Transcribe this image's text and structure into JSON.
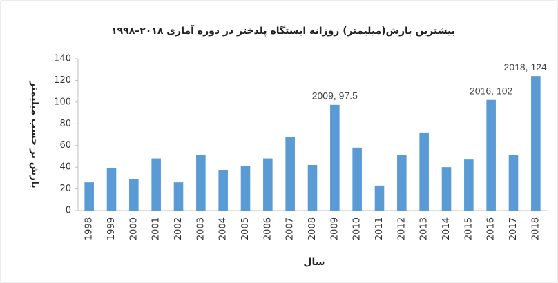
{
  "chart_data": {
    "type": "bar",
    "title": "بیشترین بارش(میلیمتر) روزانه ایستگاه پلدختر در دوره آماری ۲۰۱۸–۱۹۹۸",
    "x_label": "سال",
    "y_label": "بارش بر حسب میلیمتر",
    "categories": [
      "1998",
      "1999",
      "2000",
      "2001",
      "2002",
      "2003",
      "2004",
      "2005",
      "2006",
      "2007",
      "2008",
      "2009",
      "2010",
      "2011",
      "2012",
      "2013",
      "2014",
      "2015",
      "2016",
      "2017",
      "2018"
    ],
    "values": [
      26,
      39,
      29,
      48,
      26,
      51,
      37,
      41,
      48,
      68,
      42,
      97.5,
      58,
      23,
      51,
      72,
      40,
      47,
      102,
      51,
      124
    ],
    "value_labels": [
      null,
      null,
      null,
      null,
      null,
      null,
      null,
      null,
      null,
      null,
      null,
      "2009, 97.5",
      null,
      null,
      null,
      null,
      null,
      null,
      "2016, 102",
      null,
      "2018, 124"
    ],
    "color": "#5b9bd5",
    "ylim": [
      0,
      140
    ],
    "yticks": [
      0,
      20,
      40,
      60,
      80,
      100,
      120,
      140
    ],
    "grid": false
  }
}
